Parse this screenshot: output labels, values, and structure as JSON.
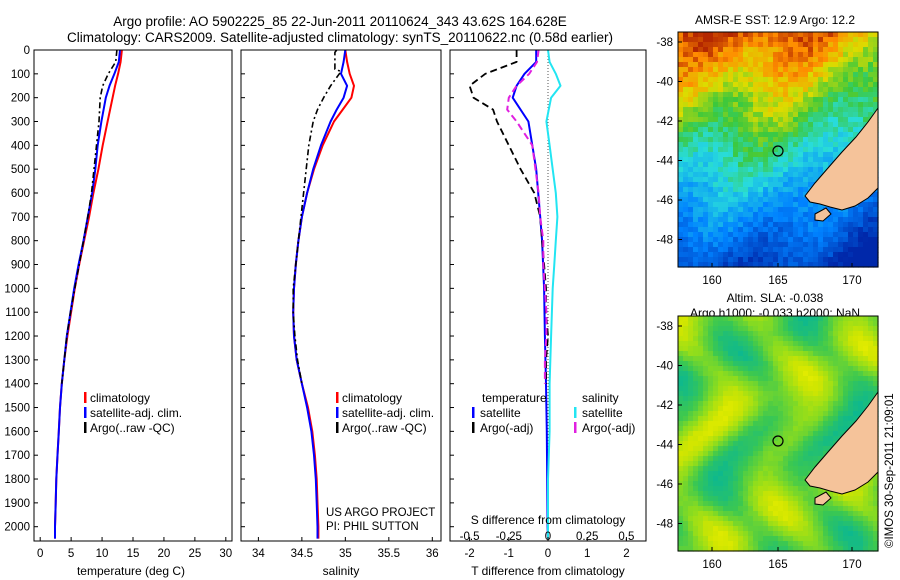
{
  "header": {
    "line1": "Argo profile: AO 5902225_85 22-Jun-2011 20110624_343 43.62S 164.628E",
    "line2": "Climatology: CARS2009. Satellite-adjusted climatology: synTS_20110622.nc (0.58d earlier)"
  },
  "colors": {
    "climatology": "#ff0000",
    "satellite": "#0000ff",
    "argo": "#000000",
    "satellite_s": "#22e5f2",
    "argo_s": "#e020e0",
    "land": "#f5c39a"
  },
  "chart_data": [
    {
      "id": "temperature",
      "type": "line",
      "xlabel": "temperature (deg C)",
      "ylabel": "",
      "xlim": [
        -1,
        31
      ],
      "ylim": [
        2060,
        0
      ],
      "xticks": [
        "0",
        "5",
        "10",
        "15",
        "20",
        "25",
        "30"
      ],
      "yticks": [
        "0",
        "100",
        "200",
        "300",
        "400",
        "500",
        "600",
        "700",
        "800",
        "900",
        "1000",
        "1100",
        "1200",
        "1300",
        "1400",
        "1500",
        "1600",
        "1700",
        "1800",
        "1900",
        "2000"
      ],
      "legend": [
        "climatology",
        "satellite-adj. clim.",
        "Argo(..raw -QC)"
      ],
      "series": [
        {
          "name": "climatology",
          "y": [
            0,
            50,
            100,
            150,
            200,
            300,
            400,
            500,
            600,
            700,
            800,
            900,
            1000,
            1100,
            1200,
            1300,
            1400,
            1500,
            1600,
            1700,
            1800,
            1900,
            2000,
            2050
          ],
          "x": [
            13.2,
            13.0,
            12.6,
            12.1,
            11.7,
            10.9,
            10.1,
            9.4,
            8.6,
            7.9,
            7.1,
            6.3,
            5.6,
            5.0,
            4.4,
            3.9,
            3.5,
            3.2,
            3.0,
            2.8,
            2.6,
            2.5,
            2.4,
            2.4
          ]
        },
        {
          "name": "satellite-adj. clim.",
          "y": [
            0,
            50,
            100,
            150,
            200,
            300,
            400,
            500,
            600,
            700,
            800,
            900,
            1000,
            1100,
            1200,
            1300,
            1400,
            1500,
            1600,
            1700,
            1800,
            1900,
            2000,
            2050
          ],
          "x": [
            12.9,
            12.7,
            12.0,
            11.2,
            10.6,
            9.9,
            9.3,
            8.9,
            8.4,
            7.7,
            7.0,
            6.2,
            5.5,
            4.9,
            4.3,
            3.9,
            3.5,
            3.2,
            3.0,
            2.8,
            2.6,
            2.5,
            2.4,
            2.4
          ]
        },
        {
          "name": "Argo(..raw -QC)",
          "y": [
            0,
            50,
            100,
            150,
            200,
            250,
            300,
            400,
            500,
            600,
            700,
            800,
            900,
            1000,
            1100,
            1200,
            1300,
            1400
          ],
          "x": [
            12.4,
            12.2,
            11.0,
            10.1,
            9.7,
            9.6,
            9.5,
            9.1,
            8.7,
            8.3,
            7.7,
            7.0,
            6.3,
            5.6,
            4.9,
            4.3,
            3.9,
            3.5
          ]
        }
      ],
      "annotations": []
    },
    {
      "id": "salinity",
      "type": "line",
      "xlabel": "salinity",
      "ylabel": "",
      "xlim": [
        33.8,
        36.1
      ],
      "ylim": [
        2060,
        0
      ],
      "xticks": [
        "34",
        "34.5",
        "35",
        "35.5",
        "36"
      ],
      "legend": [
        "climatology",
        "satellite-adj. clim.",
        "Argo(..raw -QC)"
      ],
      "series": [
        {
          "name": "climatology",
          "y": [
            0,
            50,
            100,
            150,
            200,
            250,
            300,
            400,
            500,
            600,
            700,
            800,
            900,
            1000,
            1100,
            1200,
            1300,
            1400,
            1500,
            1600,
            1700,
            1800,
            1900,
            2000,
            2050
          ],
          "x": [
            35.0,
            35.02,
            35.05,
            35.1,
            35.07,
            34.97,
            34.87,
            34.74,
            34.64,
            34.56,
            34.5,
            34.46,
            34.43,
            34.41,
            34.4,
            34.41,
            34.44,
            34.5,
            34.57,
            34.62,
            34.65,
            34.67,
            34.68,
            34.69,
            34.69
          ]
        },
        {
          "name": "satellite-adj. clim.",
          "y": [
            0,
            50,
            100,
            150,
            200,
            250,
            300,
            400,
            500,
            600,
            700,
            800,
            900,
            1000,
            1100,
            1200,
            1300,
            1400,
            1500,
            1600,
            1700,
            1800,
            1900,
            2000,
            2050
          ],
          "x": [
            35.0,
            34.98,
            34.95,
            35.02,
            34.98,
            34.9,
            34.83,
            34.72,
            34.63,
            34.56,
            34.5,
            34.46,
            34.43,
            34.41,
            34.4,
            34.41,
            34.44,
            34.5,
            34.56,
            34.61,
            34.64,
            34.66,
            34.67,
            34.68,
            34.68
          ]
        },
        {
          "name": "Argo(..raw -QC)",
          "y": [
            0,
            10,
            80,
            90,
            150,
            200,
            250,
            300,
            400,
            500,
            600,
            700,
            800,
            900,
            1000,
            1100,
            1200,
            1300,
            1400
          ],
          "x": [
            34.9,
            34.88,
            34.88,
            34.95,
            34.83,
            34.75,
            34.68,
            34.63,
            34.58,
            34.55,
            34.52,
            34.49,
            34.46,
            34.43,
            34.4,
            34.4,
            34.42,
            34.45,
            34.5
          ]
        }
      ],
      "annotations": [
        "US ARGO PROJECT",
        "PI: PHIL SUTTON"
      ]
    },
    {
      "id": "difference",
      "type": "line",
      "xlabel": "T difference from climatology",
      "xlabel_top": "S difference from climatology",
      "ylabel": "",
      "xlim": [
        -2.5,
        2.5
      ],
      "ylim": [
        2060,
        0
      ],
      "xticks": [
        "-2",
        "-1",
        "0",
        "1",
        "2"
      ],
      "s_xticks": [
        {
          "label": "-0.5",
          "value": -0.5
        },
        {
          "label": "-0.25",
          "value": -0.25
        },
        {
          "label": "0",
          "value": 0
        },
        {
          "label": "0.25",
          "value": 0.25
        },
        {
          "label": "0.5",
          "value": 0.5
        }
      ],
      "legend_titles": [
        "temperature",
        "salinity"
      ],
      "legend_left": [
        "satellite",
        "Argo(-adj)"
      ],
      "legend_right": [
        "satellite",
        "Argo(-adj)"
      ],
      "series": [
        {
          "name": "T satellite",
          "y": [
            0,
            50,
            100,
            150,
            200,
            300,
            400,
            500,
            600,
            700,
            800,
            1000,
            1200,
            1400,
            1600,
            1800,
            2000,
            2050
          ],
          "x": [
            -0.3,
            -0.3,
            -0.6,
            -0.8,
            -0.9,
            -0.5,
            -0.4,
            -0.3,
            -0.25,
            -0.2,
            -0.15,
            -0.1,
            -0.08,
            -0.05,
            -0.03,
            -0.02,
            -0.01,
            0
          ]
        },
        {
          "name": "T Argo(-adj)",
          "y": [
            0,
            50,
            100,
            150,
            200,
            250,
            300,
            400,
            500,
            600,
            700,
            800,
            900,
            1000,
            1100,
            1200,
            1300,
            1400
          ],
          "x": [
            -0.8,
            -0.8,
            -1.6,
            -2.0,
            -1.9,
            -1.4,
            -1.3,
            -1.0,
            -0.7,
            -0.35,
            -0.2,
            -0.15,
            -0.1,
            -0.05,
            -0.05,
            0,
            -0.05,
            -0.05
          ]
        },
        {
          "name": "S satellite",
          "y": [
            0,
            50,
            100,
            150,
            200,
            300,
            400,
            500,
            600,
            700,
            800,
            900,
            1000,
            1200,
            1400,
            1600,
            1800,
            2000,
            2050
          ],
          "x": [
            0.0,
            0.01,
            0.05,
            0.08,
            0.02,
            -0.01,
            0.01,
            0.03,
            0.05,
            0.06,
            0.05,
            0.04,
            0.03,
            0.02,
            0.01,
            0.01,
            0.0,
            0.0,
            0.0
          ]
        },
        {
          "name": "S Argo(-adj)",
          "y": [
            0,
            50,
            100,
            150,
            200,
            250,
            300,
            400,
            500,
            600,
            700,
            800,
            900,
            1000,
            1100,
            1200,
            1300,
            1400
          ],
          "x": [
            -0.06,
            -0.07,
            -0.12,
            -0.2,
            -0.25,
            -0.26,
            -0.2,
            -0.1,
            -0.08,
            -0.06,
            -0.05,
            -0.03,
            -0.03,
            -0.02,
            -0.01,
            -0.01,
            -0.02,
            -0.02
          ]
        }
      ],
      "annotations": []
    }
  ],
  "maps": {
    "sst": {
      "title": "AMSR-E SST: 12.9 Argo: 12.2",
      "lon_ticks": [
        "160",
        "165",
        "170"
      ],
      "lat_ticks": [
        "-38",
        "-40",
        "-42",
        "-44",
        "-46",
        "-48"
      ]
    },
    "sla": {
      "title_line1": "Altim. SLA: -0.038",
      "title_line2": "Argo h1000: -0.033 h2000: NaN",
      "lon_ticks": [
        "160",
        "165",
        "170"
      ],
      "lat_ticks": [
        "-38",
        "-40",
        "-42",
        "-44",
        "-46",
        "-48"
      ]
    },
    "credit": "©IMOS 30-Sep-2011 21:09:01"
  }
}
